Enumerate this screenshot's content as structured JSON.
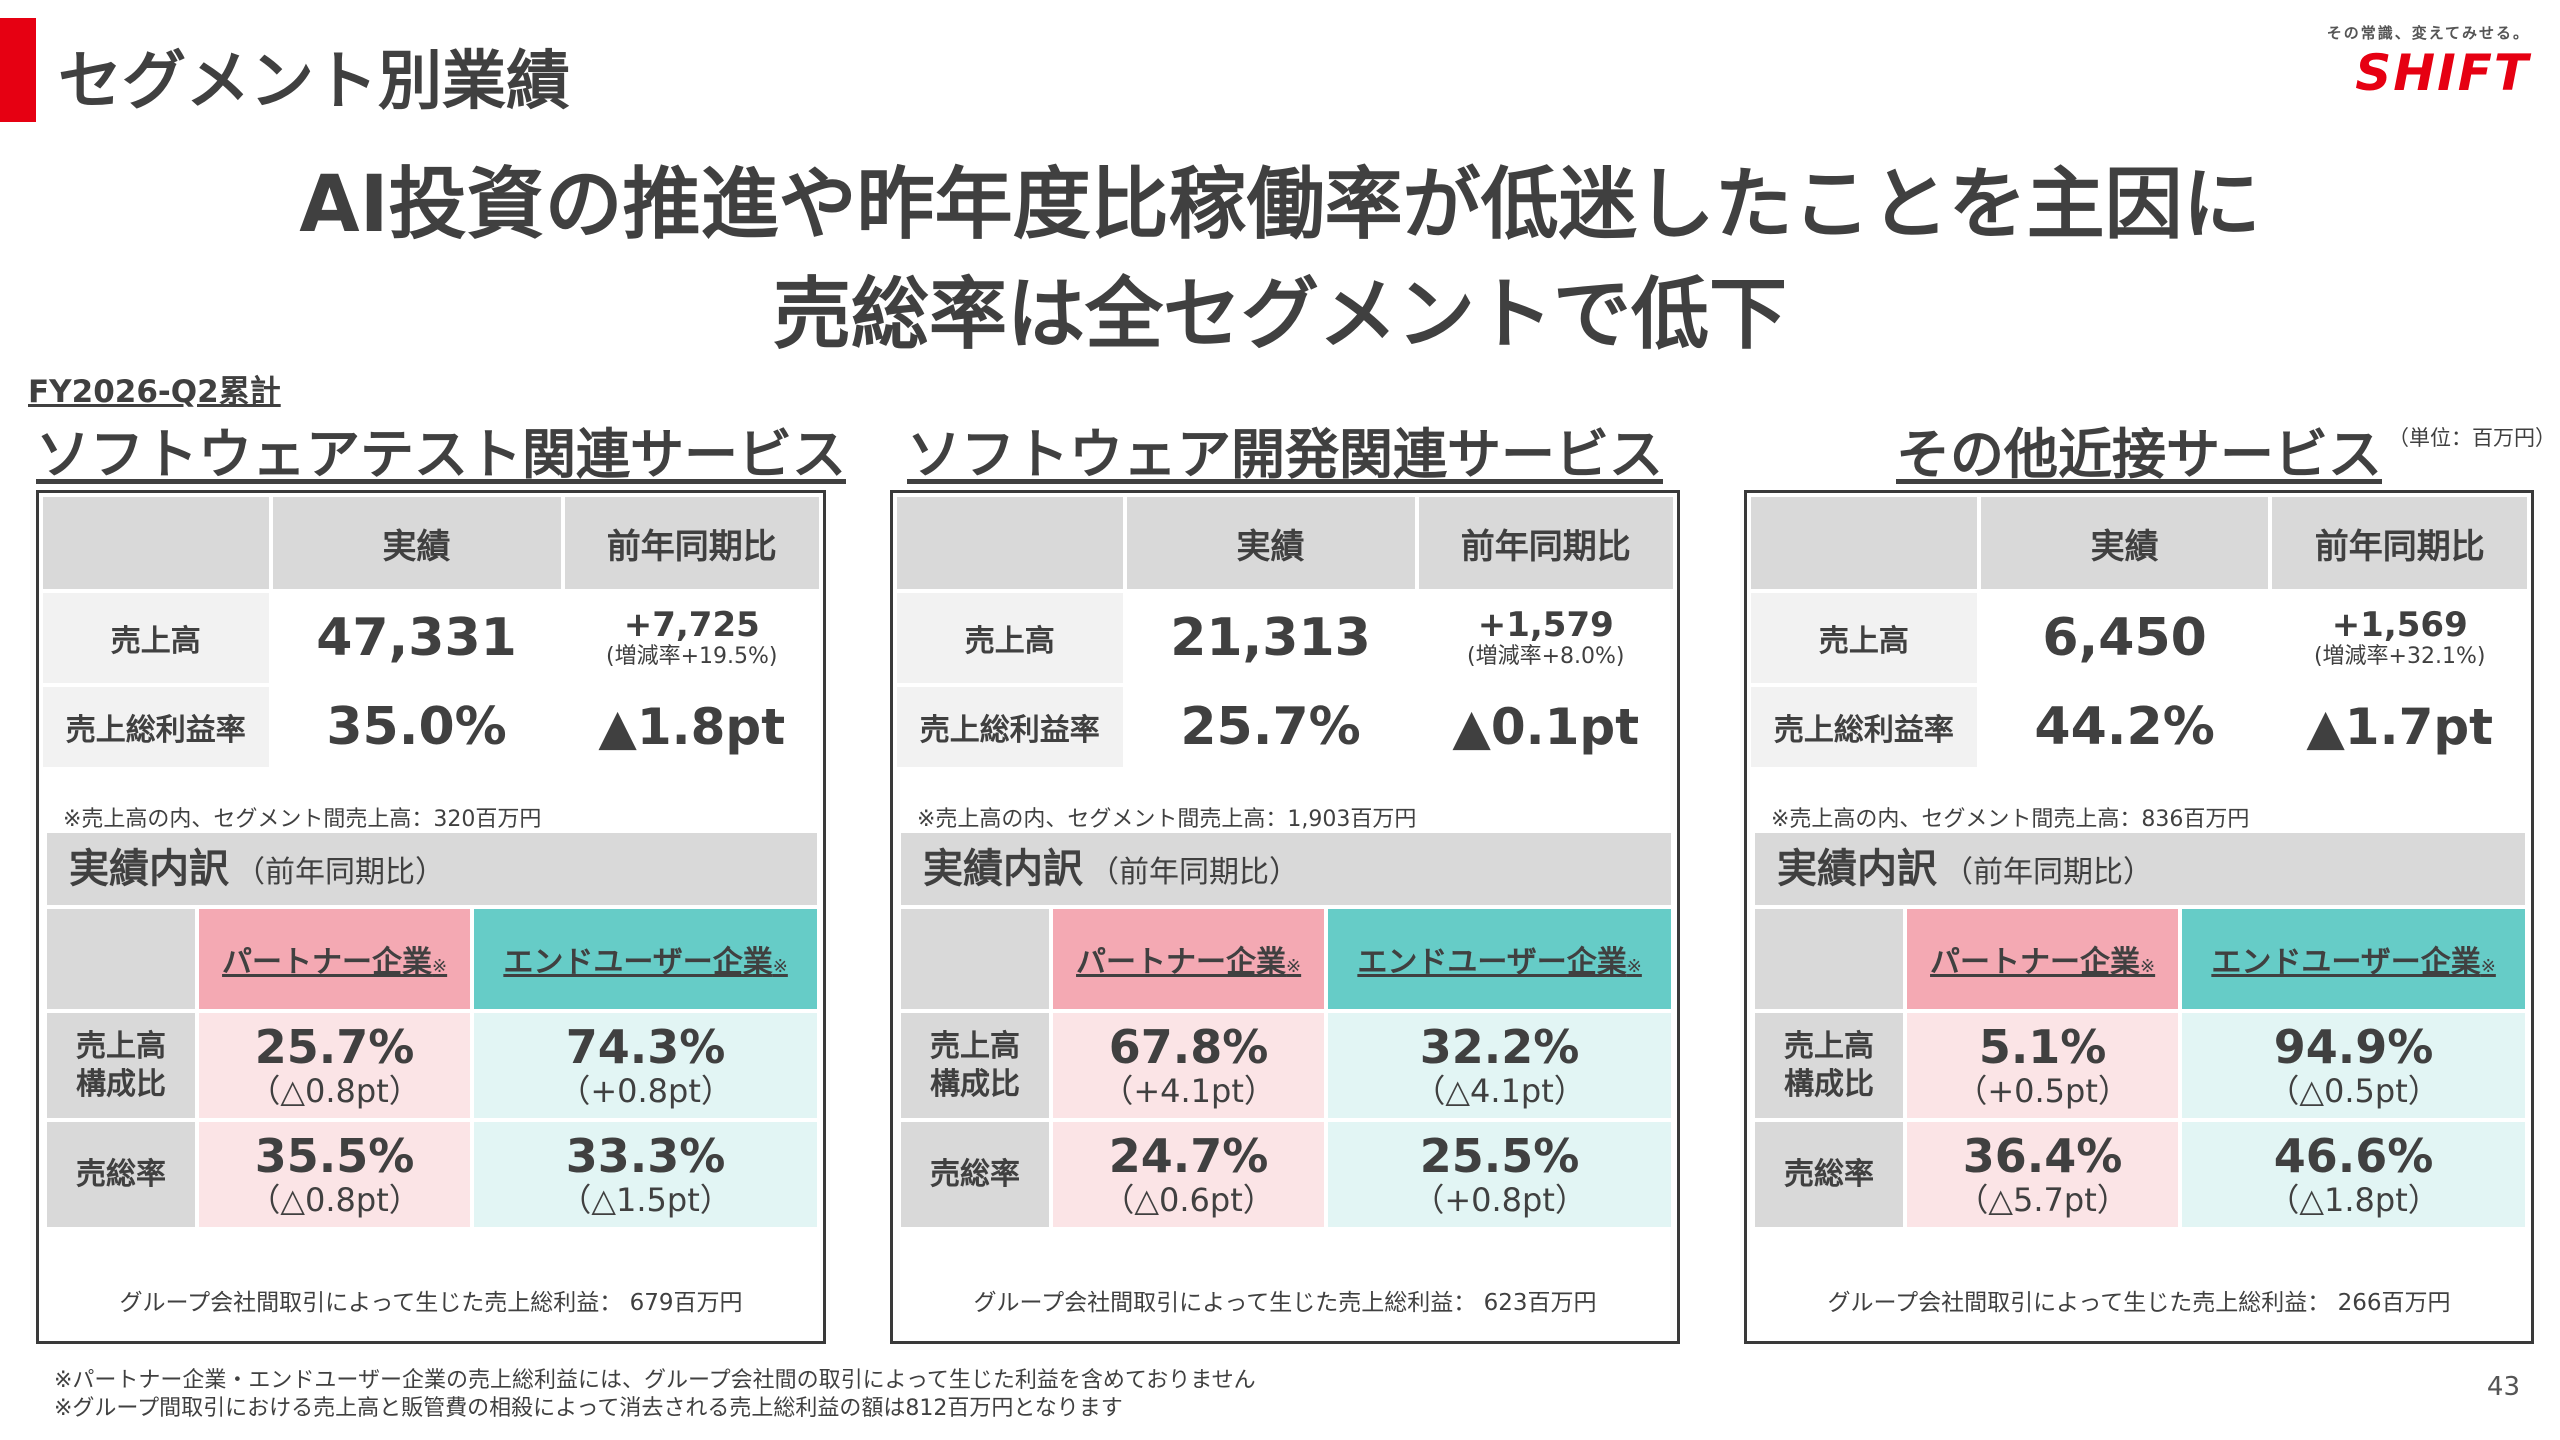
{
  "page_title": "セグメント別業績",
  "brand": {
    "tagline": "その常識、変えてみせる。",
    "wordmark": "SHIFT",
    "color": "#e60012"
  },
  "headline": {
    "line1": "AI投資の推進や昨年度比稼働率が低迷したことを主因に",
    "line2": "売総率は全セグメントで低下"
  },
  "period": "FY2026-Q2累計",
  "unit": "（単位：百万円）",
  "labels": {
    "actual": "実績",
    "yoy": "前年同期比",
    "sales": "売上高",
    "gm_rate": "売上総利益率",
    "breakdown": "実績内訳",
    "breakdown_sub": "（前年同期比）",
    "partner": "パートナー企業",
    "enduser": "エンドユーザー企業",
    "note_mark": "※",
    "sales_comp_1": "売上高",
    "sales_comp_2": "構成比",
    "gross_rate": "売総率"
  },
  "segments": [
    {
      "title": "ソフトウェアテスト関連サービス",
      "sales": "47,331",
      "sales_yoy": "+7,725",
      "sales_yoy_rate": "(増減率+19.5%)",
      "gm": "35.0%",
      "gm_yoy": "▲1.8pt",
      "inter_note": "※売上高の内、セグメント間売上高：320百万円",
      "partner_comp": "25.7%",
      "partner_comp_chg": "（△0.8pt）",
      "enduser_comp": "74.3%",
      "enduser_comp_chg": "（+0.8pt）",
      "partner_gm": "35.5%",
      "partner_gm_chg": "（△0.8pt）",
      "enduser_gm": "33.3%",
      "enduser_gm_chg": "（△1.5pt）",
      "group_note": "グループ会社間取引によって生じた売上総利益： 679百万円"
    },
    {
      "title": "ソフトウェア開発関連サービス",
      "sales": "21,313",
      "sales_yoy": "+1,579",
      "sales_yoy_rate": "(増減率+8.0%)",
      "gm": "25.7%",
      "gm_yoy": "▲0.1pt",
      "inter_note": "※売上高の内、セグメント間売上高：1,903百万円",
      "partner_comp": "67.8%",
      "partner_comp_chg": "（+4.1pt）",
      "enduser_comp": "32.2%",
      "enduser_comp_chg": "（△4.1pt）",
      "partner_gm": "24.7%",
      "partner_gm_chg": "（△0.6pt）",
      "enduser_gm": "25.5%",
      "enduser_gm_chg": "（+0.8pt）",
      "group_note": "グループ会社間取引によって生じた売上総利益： 623百万円"
    },
    {
      "title": "その他近接サービス",
      "sales": "6,450",
      "sales_yoy": "+1,569",
      "sales_yoy_rate": "(増減率+32.1%)",
      "gm": "44.2%",
      "gm_yoy": "▲1.7pt",
      "inter_note": "※売上高の内、セグメント間売上高：836百万円",
      "partner_comp": "5.1%",
      "partner_comp_chg": "（+0.5pt）",
      "enduser_comp": "94.9%",
      "enduser_comp_chg": "（△0.5pt）",
      "partner_gm": "36.4%",
      "partner_gm_chg": "（△5.7pt）",
      "enduser_gm": "46.6%",
      "enduser_gm_chg": "（△1.8pt）",
      "group_note": "グループ会社間取引によって生じた売上総利益： 266百万円"
    }
  ],
  "footnotes": [
    "※パートナー企業・エンドユーザー企業の売上総利益には、グループ会社間の取引によって生じた利益を含めておりません",
    "※グループ間取引における売上高と販管費の相殺によって消去される売上総利益の額は812百万円となります"
  ],
  "page_number": "43"
}
